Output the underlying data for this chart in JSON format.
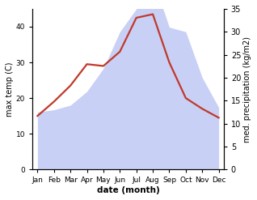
{
  "months": [
    "Jan",
    "Feb",
    "Mar",
    "Apr",
    "May",
    "Jun",
    "Jul",
    "Aug",
    "Sep",
    "Oct",
    "Nov",
    "Dec"
  ],
  "x": [
    0,
    1,
    2,
    3,
    4,
    5,
    6,
    7,
    8,
    9,
    10,
    11
  ],
  "max_temp": [
    15.0,
    19.0,
    23.5,
    29.5,
    29.0,
    33.0,
    42.5,
    43.5,
    30.0,
    20.0,
    17.0,
    14.5
  ],
  "precipitation": [
    12.5,
    13.0,
    14.0,
    17.0,
    22.0,
    30.0,
    35.0,
    41.5,
    31.0,
    30.0,
    20.0,
    13.5
  ],
  "temp_color": "#c0392b",
  "precip_fill_color": "#c8d0f5",
  "precip_fill_alpha": 1.0,
  "ylim_left": [
    0,
    45
  ],
  "ylim_right": [
    0,
    35
  ],
  "ylabel_left": "max temp (C)",
  "ylabel_right": "med. precipitation (kg/m2)",
  "xlabel": "date (month)",
  "bg_color": "#ffffff",
  "line_width": 1.6,
  "temp_yticks": [
    0,
    10,
    20,
    30,
    40
  ],
  "precip_yticks": [
    0,
    5,
    10,
    15,
    20,
    25,
    30,
    35
  ]
}
